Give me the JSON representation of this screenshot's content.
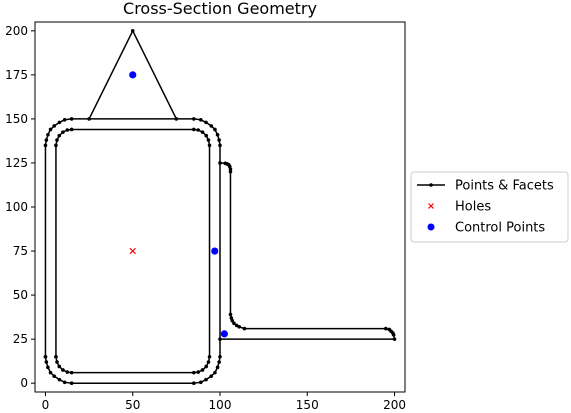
{
  "chart_data": {
    "type": "line",
    "title": "Cross-Section Geometry",
    "xlabel": "",
    "ylabel": "",
    "xlim": [
      -6,
      206
    ],
    "ylim": [
      -5,
      205
    ],
    "xticks": [
      0,
      50,
      100,
      150,
      200
    ],
    "yticks": [
      0,
      25,
      50,
      75,
      100,
      125,
      150,
      175,
      200
    ],
    "grid": false,
    "legend_position": "right",
    "legend": [
      {
        "label": "Points & Facets",
        "marker": "line-dot",
        "color": "#000000"
      },
      {
        "label": "Holes",
        "marker": "x",
        "color": "#ff0000"
      },
      {
        "label": "Control Points",
        "marker": "circle",
        "color": "#0000ff"
      }
    ],
    "series": [
      {
        "name": "Points & Facets",
        "polygons": [
          [
            [
              0,
              15
            ],
            [
              0.5,
              12
            ],
            [
              1.4,
              9
            ],
            [
              2.9,
              6
            ],
            [
              5,
              4
            ],
            [
              8,
              2
            ],
            [
              11,
              0.5
            ],
            [
              15,
              0
            ],
            [
              85,
              0
            ],
            [
              89,
              0.5
            ],
            [
              92,
              2
            ],
            [
              95,
              4
            ],
            [
              97.1,
              6
            ],
            [
              98.6,
              9
            ],
            [
              99.5,
              12
            ],
            [
              100,
              15
            ],
            [
              100,
              135
            ],
            [
              99.5,
              138
            ],
            [
              98.6,
              141
            ],
            [
              97.1,
              144
            ],
            [
              95,
              146
            ],
            [
              92,
              148
            ],
            [
              89,
              149.5
            ],
            [
              85,
              150
            ],
            [
              15,
              150
            ],
            [
              11,
              149.5
            ],
            [
              8,
              148
            ],
            [
              5,
              146
            ],
            [
              2.9,
              144
            ],
            [
              1.4,
              141
            ],
            [
              0.5,
              138
            ],
            [
              0,
              135
            ],
            [
              0,
              15
            ]
          ],
          [
            [
              25,
              150
            ],
            [
              50,
              200
            ],
            [
              75,
              150
            ]
          ],
          [
            [
              6,
              15
            ],
            [
              6.6,
              12
            ],
            [
              7.9,
              9.5
            ],
            [
              10,
              7.5
            ],
            [
              12.5,
              6.3
            ],
            [
              15,
              6
            ],
            [
              85,
              6
            ],
            [
              87.5,
              6.3
            ],
            [
              90,
              7.5
            ],
            [
              92.1,
              9.5
            ],
            [
              93.4,
              12
            ],
            [
              94,
              15
            ],
            [
              94,
              135
            ],
            [
              93.4,
              138
            ],
            [
              92.1,
              140.5
            ],
            [
              90,
              142.5
            ],
            [
              87.5,
              143.7
            ],
            [
              85,
              144
            ],
            [
              15,
              144
            ],
            [
              12.5,
              143.7
            ],
            [
              10,
              142.5
            ],
            [
              7.9,
              140.5
            ],
            [
              6.6,
              138
            ],
            [
              6,
              135
            ],
            [
              6,
              15
            ]
          ],
          [
            [
              100,
              125
            ],
            [
              103,
              124.8
            ],
            [
              104,
              124.5
            ],
            [
              105,
              124
            ],
            [
              105.6,
              123
            ],
            [
              106,
              121.5
            ],
            [
              106,
              120
            ],
            [
              106,
              39
            ],
            [
              106.5,
              37
            ],
            [
              107,
              35.5
            ],
            [
              108,
              34
            ],
            [
              109.5,
              32.8
            ],
            [
              111,
              32
            ],
            [
              114,
              31
            ],
            [
              195,
              31
            ],
            [
              197,
              30.5
            ],
            [
              198,
              29.5
            ],
            [
              199,
              28.5
            ],
            [
              199.5,
              27.5
            ],
            [
              200,
              25
            ],
            [
              100,
              25
            ]
          ]
        ]
      }
    ],
    "holes": [
      [
        50,
        75
      ]
    ],
    "control_points": [
      [
        50,
        175
      ],
      [
        97,
        75
      ],
      [
        102.5,
        28
      ]
    ]
  }
}
